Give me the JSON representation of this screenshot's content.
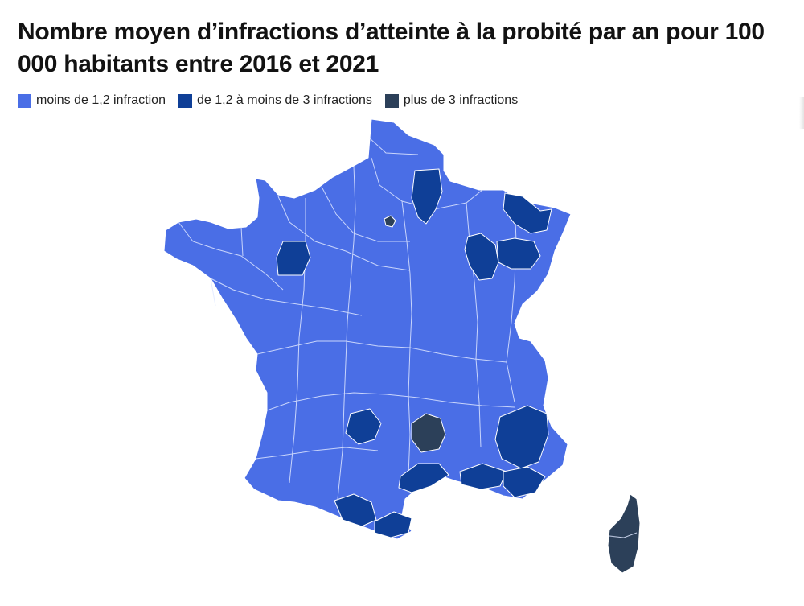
{
  "title": "Nombre moyen d’infractions d’atteinte à la probité par an pour 100 000 habitants entre 2016 et 2021",
  "legend": [
    {
      "label": "moins de 1,2 infraction",
      "color": "#4a6ee6"
    },
    {
      "label": "de 1,2 à moins de 3 infractions",
      "color": "#0f3f97"
    },
    {
      "label": "plus de 3 infractions",
      "color": "#2c4059"
    }
  ],
  "map": {
    "country": "France",
    "level": "département",
    "classes": {
      "low": "moins de 1,2 infraction",
      "mid": "de 1,2 à moins de 3 infractions",
      "high": "plus de 3 infractions"
    }
  }
}
